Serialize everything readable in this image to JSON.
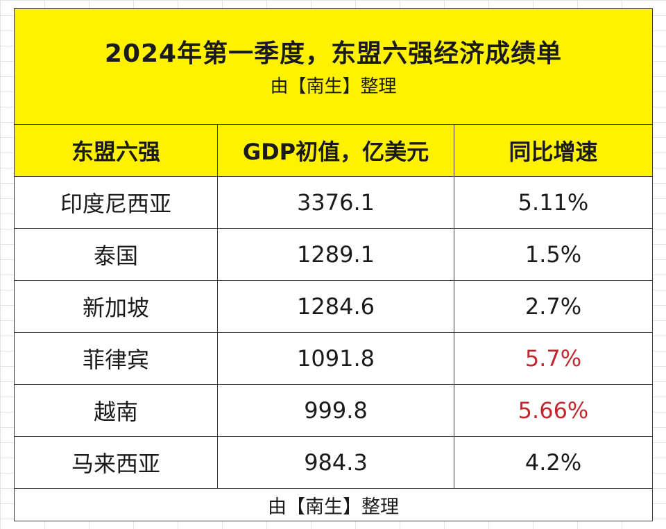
{
  "chart_data": {
    "type": "table",
    "title": "2024年第一季度，东盟六强经济成绩单",
    "subtitle": "由【南生】整理",
    "columns": [
      "东盟六强",
      "GDP初值，亿美元",
      "同比增速"
    ],
    "rows": [
      {
        "country": "印度尼西亚",
        "gdp": "3376.1",
        "growth": "5.11%",
        "highlight": false
      },
      {
        "country": "泰国",
        "gdp": "1289.1",
        "growth": "1.5%",
        "highlight": false
      },
      {
        "country": "新加坡",
        "gdp": "1284.6",
        "growth": "2.7%",
        "highlight": false
      },
      {
        "country": "菲律宾",
        "gdp": "1091.8",
        "growth": "5.7%",
        "highlight": true
      },
      {
        "country": "越南",
        "gdp": "999.8",
        "growth": "5.66%",
        "highlight": true
      },
      {
        "country": "马来西亚",
        "gdp": "984.3",
        "growth": "4.2%",
        "highlight": false
      }
    ],
    "footer": "由【南生】整理"
  },
  "colors": {
    "header_background": "#fff200",
    "highlight_text": "#c0282d",
    "border": "#3a3a3a"
  }
}
